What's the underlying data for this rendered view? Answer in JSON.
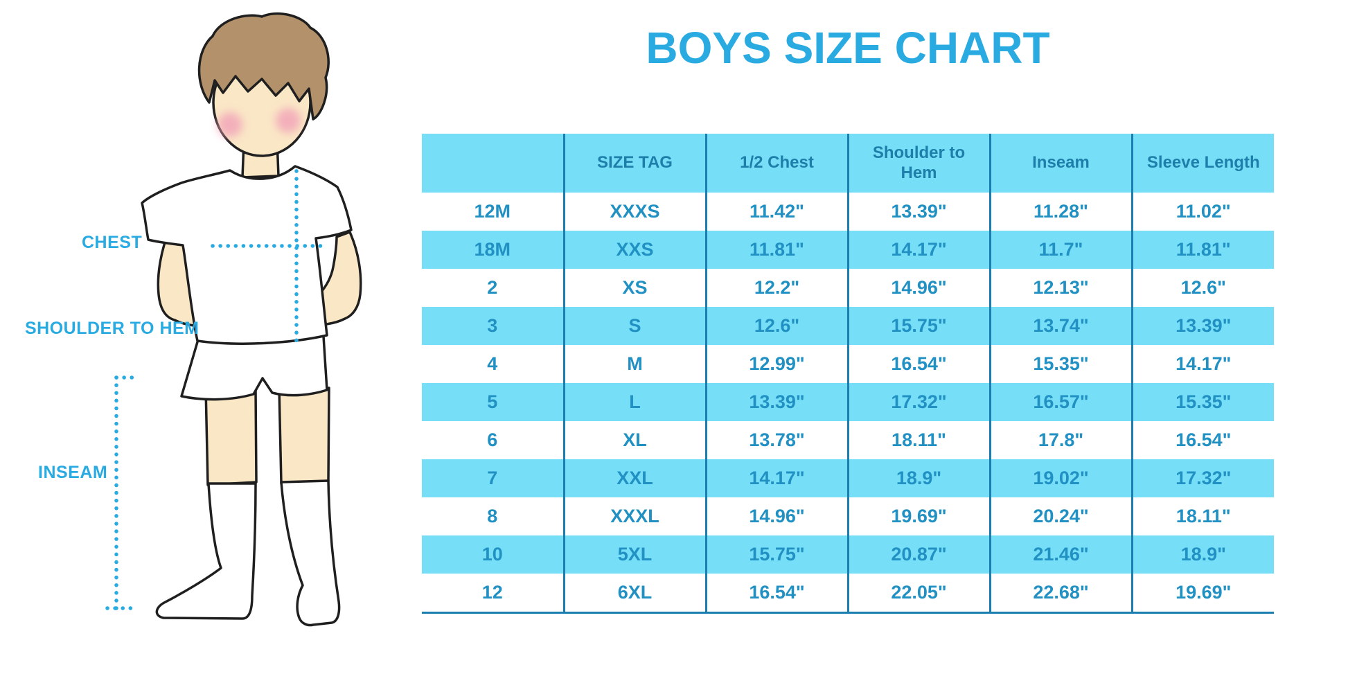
{
  "title": "BOYS SIZE CHART",
  "accent": "#29ABE2",
  "figure": {
    "labels": {
      "chest": "CHEST",
      "shoulder_to_hem": "SHOULDER TO HEM",
      "inseam": "INSEAM"
    },
    "colors": {
      "skin": "#FAE7C6",
      "hair": "#B3916A",
      "cheek": "#F2A3B8",
      "outline": "#1F1F1F",
      "garment": "#FFFFFF",
      "measure_line": "#29ABE2"
    }
  },
  "table_style": {
    "header_bg": "#76DFF7",
    "alt_row_bg": "#76DFF7",
    "table_border": "#1A7FB0",
    "header_text": "#1D7FA9",
    "cell_text": "#2190C3"
  },
  "chart_data": {
    "type": "table",
    "title": "BOYS SIZE CHART",
    "columns": [
      "",
      "SIZE TAG",
      "1/2 Chest",
      "Shoulder to Hem",
      "Inseam",
      "Sleeve Length"
    ],
    "rows": [
      [
        "12M",
        "XXXS",
        "11.42\"",
        "13.39\"",
        "11.28\"",
        "11.02\""
      ],
      [
        "18M",
        "XXS",
        "11.81\"",
        "14.17\"",
        "11.7\"",
        "11.81\""
      ],
      [
        "2",
        "XS",
        "12.2\"",
        "14.96\"",
        "12.13\"",
        "12.6\""
      ],
      [
        "3",
        "S",
        "12.6\"",
        "15.75\"",
        "13.74\"",
        "13.39\""
      ],
      [
        "4",
        "M",
        "12.99\"",
        "16.54\"",
        "15.35\"",
        "14.17\""
      ],
      [
        "5",
        "L",
        "13.39\"",
        "17.32\"",
        "16.57\"",
        "15.35\""
      ],
      [
        "6",
        "XL",
        "13.78\"",
        "18.11\"",
        "17.8\"",
        "16.54\""
      ],
      [
        "7",
        "XXL",
        "14.17\"",
        "18.9\"",
        "19.02\"",
        "17.32\""
      ],
      [
        "8",
        "XXXL",
        "14.96\"",
        "19.69\"",
        "20.24\"",
        "18.11\""
      ],
      [
        "10",
        "5XL",
        "15.75\"",
        "20.87\"",
        "21.46\"",
        "18.9\""
      ],
      [
        "12",
        "6XL",
        "16.54\"",
        "22.05\"",
        "22.68\"",
        "19.69\""
      ]
    ]
  }
}
